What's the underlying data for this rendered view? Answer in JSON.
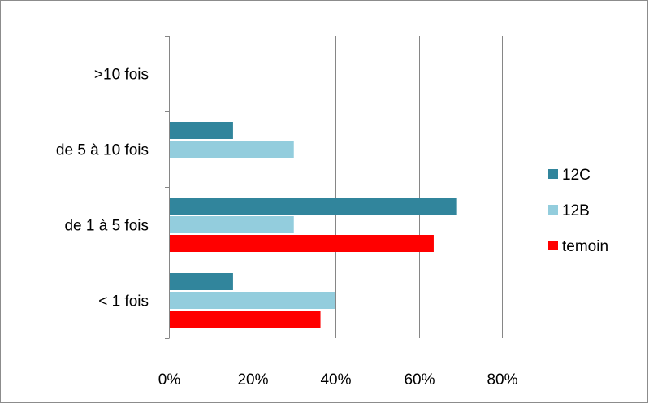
{
  "chart_data": {
    "type": "bar",
    "orientation": "horizontal",
    "categories": [
      ">10 fois",
      "de 5 à 10 fois",
      "de 1 à 5  fois",
      "< 1 fois"
    ],
    "series": [
      {
        "name": "12C",
        "color": "#31859c",
        "values": [
          0,
          0.154,
          0.692,
          0.154
        ]
      },
      {
        "name": "12B",
        "color": "#93cddd",
        "values": [
          0,
          0.3,
          0.3,
          0.4
        ]
      },
      {
        "name": "temoin",
        "color": "#ff0000",
        "values": [
          0,
          0,
          0.636,
          0.364
        ]
      }
    ],
    "xlim": [
      0,
      0.8
    ],
    "xticks": [
      "0%",
      "20%",
      "40%",
      "60%",
      "80%"
    ],
    "grid": "vertical",
    "legend": "right",
    "title": "",
    "xlabel": "",
    "ylabel": ""
  }
}
